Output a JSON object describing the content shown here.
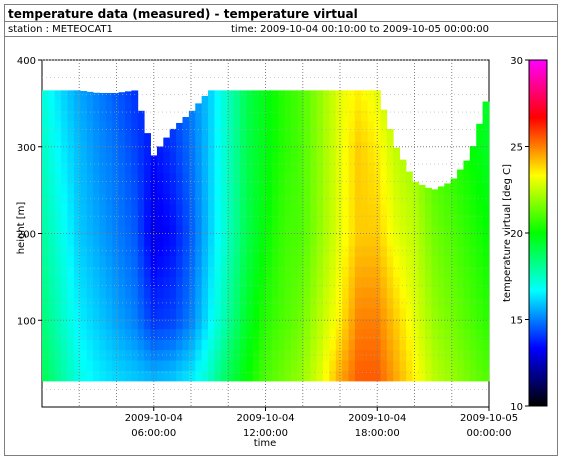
{
  "header": {
    "title": "temperature data (measured) - temperature virtual",
    "station": "station : METEOCAT1",
    "time_range": "time: 2009-10-04 00:10:00 to 2009-10-05 00:00:00"
  },
  "chart_data": {
    "type": "heatmap",
    "title": "temperature data (measured) - temperature virtual",
    "xlabel": "time",
    "ylabel": "height [m]",
    "colorbar_label": "temperature virtual [deg C]",
    "x_range": [
      "2009-10-04 00:10:00",
      "2009-10-05 00:00:00"
    ],
    "ylim": [
      0,
      400
    ],
    "height_range_with_data": [
      30,
      365
    ],
    "y_ticks": [
      {
        "value": 100,
        "label": "100"
      },
      {
        "value": 200,
        "label": "200"
      },
      {
        "value": 300,
        "label": "300"
      },
      {
        "value": 400,
        "label": "400"
      }
    ],
    "x_ticks": [
      {
        "hour": 6,
        "line1": "2009-10-04",
        "line2": "06:00:00"
      },
      {
        "hour": 12,
        "line1": "2009-10-04",
        "line2": "12:00:00"
      },
      {
        "hour": 18,
        "line1": "2009-10-04",
        "line2": "18:00:00"
      },
      {
        "hour": 24,
        "line1": "2009-10-05",
        "line2": "00:00:00"
      }
    ],
    "colorbar_range": [
      10,
      30
    ],
    "colorbar_ticks": [
      {
        "value": 10,
        "label": "10"
      },
      {
        "value": 15,
        "label": "15"
      },
      {
        "value": 20,
        "label": "20"
      },
      {
        "value": 25,
        "label": "25"
      },
      {
        "value": 30,
        "label": "30"
      }
    ],
    "colormap": [
      "#000000",
      "#0000ff",
      "#00ffff",
      "#00ff00",
      "#ffff00",
      "#ff0000",
      "#ff00ff"
    ],
    "grid": true,
    "profile_hours": [
      0,
      1,
      2,
      3,
      4,
      5,
      6,
      7,
      8,
      9,
      10,
      11,
      12,
      13,
      14,
      15,
      16,
      17,
      18,
      19,
      20,
      21,
      22,
      23,
      24
    ],
    "profile_heights": [
      30,
      100,
      200,
      300,
      365
    ],
    "temperature_profiles": [
      [
        19.0,
        18.5,
        18.0,
        17.5,
        17.2
      ],
      [
        18.0,
        17.5,
        17.0,
        16.5,
        16.2
      ],
      [
        17.0,
        16.5,
        16.0,
        15.8,
        15.5
      ],
      [
        16.5,
        16.0,
        15.5,
        15.2,
        15.0
      ],
      [
        16.2,
        15.5,
        15.0,
        14.8,
        14.5
      ],
      [
        16.0,
        15.0,
        14.5,
        14.2,
        14.0
      ],
      [
        15.8,
        14.0,
        13.0,
        13.5,
        13.8
      ],
      [
        16.0,
        14.2,
        13.5,
        14.0,
        14.2
      ],
      [
        16.5,
        15.0,
        14.5,
        14.8,
        15.0
      ],
      [
        17.5,
        16.5,
        16.0,
        16.0,
        16.0
      ],
      [
        19.0,
        18.0,
        17.5,
        17.5,
        17.5
      ],
      [
        20.0,
        19.5,
        19.0,
        19.0,
        19.0
      ],
      [
        21.0,
        20.5,
        20.0,
        19.8,
        19.8
      ],
      [
        21.5,
        21.0,
        20.8,
        20.5,
        20.5
      ],
      [
        22.0,
        21.5,
        21.0,
        21.0,
        21.0
      ],
      [
        23.0,
        22.5,
        22.0,
        22.0,
        22.0
      ],
      [
        24.5,
        23.5,
        23.0,
        23.0,
        23.0
      ],
      [
        25.5,
        25.0,
        24.0,
        24.0,
        23.5
      ],
      [
        25.5,
        25.0,
        24.0,
        23.5,
        23.0
      ],
      [
        24.5,
        24.0,
        23.0,
        22.5,
        22.0
      ],
      [
        23.5,
        23.0,
        22.5,
        22.0,
        21.5
      ],
      [
        22.5,
        22.0,
        21.5,
        21.0,
        20.8
      ],
      [
        22.0,
        21.5,
        21.0,
        20.5,
        20.5
      ],
      [
        21.5,
        21.0,
        20.5,
        20.0,
        20.0
      ],
      [
        21.0,
        20.5,
        20.0,
        19.5,
        19.5
      ]
    ],
    "data_top_height_by_hour": [
      365,
      365,
      365,
      362,
      362,
      365,
      290,
      320,
      340,
      365,
      365,
      365,
      365,
      365,
      365,
      365,
      365,
      365,
      365,
      300,
      260,
      250,
      260,
      290,
      365
    ]
  }
}
